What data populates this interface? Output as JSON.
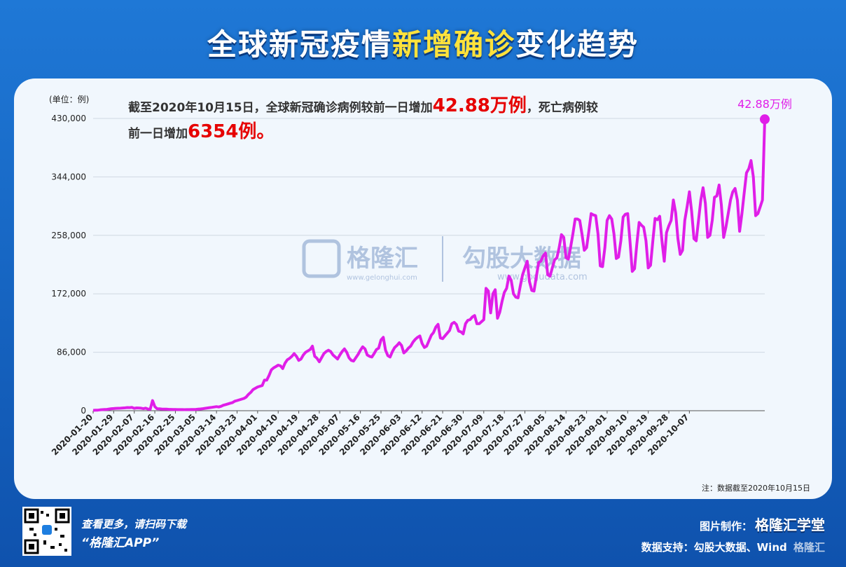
{
  "title": {
    "part1": "全球新冠疫情",
    "part2": "新增确诊",
    "part3": "变化趋势"
  },
  "colors": {
    "line": "#e01ee8",
    "title_highlight": "#ffe23b",
    "highlight_red": "#e60000",
    "card_bg": "#f1f7fd",
    "page_bg": "#1767c4"
  },
  "annotation": {
    "line1_pre": "截至2020年10月15日，全球新冠确诊病例较前一日增加",
    "line1_num": "42.88万例",
    "line1_post": "，死亡病例较",
    "line2_pre": "前一日增加",
    "line2_num": "6354例。"
  },
  "watermark": {
    "brand1": "格隆汇",
    "brand1_url": "www.gelonghui.com",
    "brand2": "勾股大数据",
    "brand2_url": "www.gogudata.com"
  },
  "note": "注：数据截至2020年10月15日",
  "footer": {
    "scan_text": "查看更多，请扫码下载",
    "app_text": "“格隆汇APP”",
    "made_by_label": "图片制作：",
    "made_by_brand": "格隆汇学堂",
    "data_support": "数据支持：勾股大数据、Wind",
    "corner_logo": "格隆汇"
  },
  "chart_data": {
    "type": "line",
    "ylabel": "(单位：例)",
    "ylim": [
      0,
      430000
    ],
    "yticks": [
      0,
      86000,
      172000,
      258000,
      344000,
      430000
    ],
    "ytick_labels": [
      "0",
      "86,000",
      "172,000",
      "258,000",
      "344,000",
      "430,000"
    ],
    "x_start": "2020-01-20",
    "x_end": "2020-10-15",
    "xtick_labels": [
      "2020-01-20",
      "2020-01-29",
      "2020-02-07",
      "2020-02-16",
      "2020-02-25",
      "2020-03-05",
      "2020-03-14",
      "2020-03-23",
      "2020-04-01",
      "2020-04-10",
      "2020-04-19",
      "2020-04-28",
      "2020-05-07",
      "2020-05-16",
      "2020-05-25",
      "2020-06-03",
      "2020-06-12",
      "2020-06-21",
      "2020-06-30",
      "2020-07-09",
      "2020-07-18",
      "2020-07-27",
      "2020-08-05",
      "2020-08-14",
      "2020-08-23",
      "2020-09-01",
      "2020-09-10",
      "2020-09-19",
      "2020-09-28",
      "2020-10-07"
    ],
    "last_point_label": "42.88万例",
    "series": [
      {
        "values": [
          500,
          700,
          800,
          1200,
          1500,
          1800,
          2000,
          2500,
          3000,
          3200,
          3500,
          3600,
          3700,
          4000,
          4200,
          4600,
          4500,
          4800,
          3500,
          4100,
          4000,
          3700,
          3000,
          3800,
          2500,
          2200,
          15000,
          6000,
          3000,
          2800,
          2500,
          2400,
          2300,
          2100,
          2000,
          1900,
          1800,
          1700,
          1700,
          1600,
          1500,
          1600,
          1700,
          1800,
          1900,
          2000,
          2300,
          2600,
          3000,
          3500,
          4000,
          4500,
          5000,
          5500,
          6000,
          5500,
          6500,
          8000,
          9000,
          10000,
          11000,
          12000,
          14000,
          15000,
          16000,
          17000,
          18000,
          20000,
          24000,
          27000,
          31000,
          33000,
          35000,
          36000,
          37000,
          45000,
          45000,
          52000,
          60000,
          63000,
          65000,
          67000,
          66000,
          62000,
          70000,
          75000,
          77000,
          80000,
          84000,
          80000,
          74000,
          76000,
          82000,
          86000,
          88000,
          90000,
          95000,
          80000,
          77000,
          72000,
          78000,
          84000,
          87000,
          89000,
          87000,
          82000,
          79000,
          76000,
          82000,
          87000,
          91000,
          86000,
          78000,
          74000,
          73000,
          78000,
          83000,
          89000,
          94000,
          91000,
          82000,
          80000,
          79000,
          84000,
          90000,
          92000,
          104000,
          108000,
          89000,
          81000,
          79000,
          87000,
          93000,
          96000,
          100000,
          96000,
          85000,
          88000,
          92000,
          95000,
          101000,
          105000,
          108000,
          110000,
          99000,
          93000,
          95000,
          103000,
          111000,
          115000,
          123000,
          127000,
          107000,
          106000,
          110000,
          114000,
          118000,
          128000,
          130000,
          127000,
          117000,
          116000,
          113000,
          128000,
          133000,
          134000,
          138000,
          140000,
          128000,
          128000,
          131000,
          134000,
          180000,
          176000,
          144000,
          172000,
          178000,
          136000,
          145000,
          161000,
          174000,
          180000,
          198000,
          192000,
          172000,
          167000,
          166000,
          184000,
          200000,
          210000,
          220000,
          190000,
          177000,
          176000,
          197000,
          218000,
          220000,
          228000,
          232000,
          200000,
          198000,
          210000,
          222000,
          225000,
          240000,
          259000,
          255000,
          225000,
          223000,
          240000,
          260000,
          282000,
          282000,
          280000,
          260000,
          236000,
          240000,
          264000,
          290000,
          288000,
          287000,
          260000,
          213000,
          212000,
          240000,
          280000,
          287000,
          282000,
          260000,
          224000,
          226000,
          250000,
          285000,
          289000,
          290000,
          250000,
          205000,
          209000,
          245000,
          277000,
          273000,
          270000,
          250000,
          210000,
          214000,
          250000,
          283000,
          281000,
          286000,
          250000,
          220000,
          262000,
          272000,
          280000,
          310000,
          291000,
          253000,
          230000,
          236000,
          280000,
          300000,
          322000,
          293000,
          253000,
          250000,
          280000,
          310000,
          328000,
          305000,
          255000,
          258000,
          280000,
          314000,
          316000,
          332000,
          303000,
          255000,
          270000,
          290000,
          310000,
          322000,
          327000,
          310000,
          264000,
          290000,
          320000,
          350000,
          356000,
          368000,
          344000,
          287000,
          290000,
          300000,
          310000,
          428800
        ]
      }
    ]
  }
}
